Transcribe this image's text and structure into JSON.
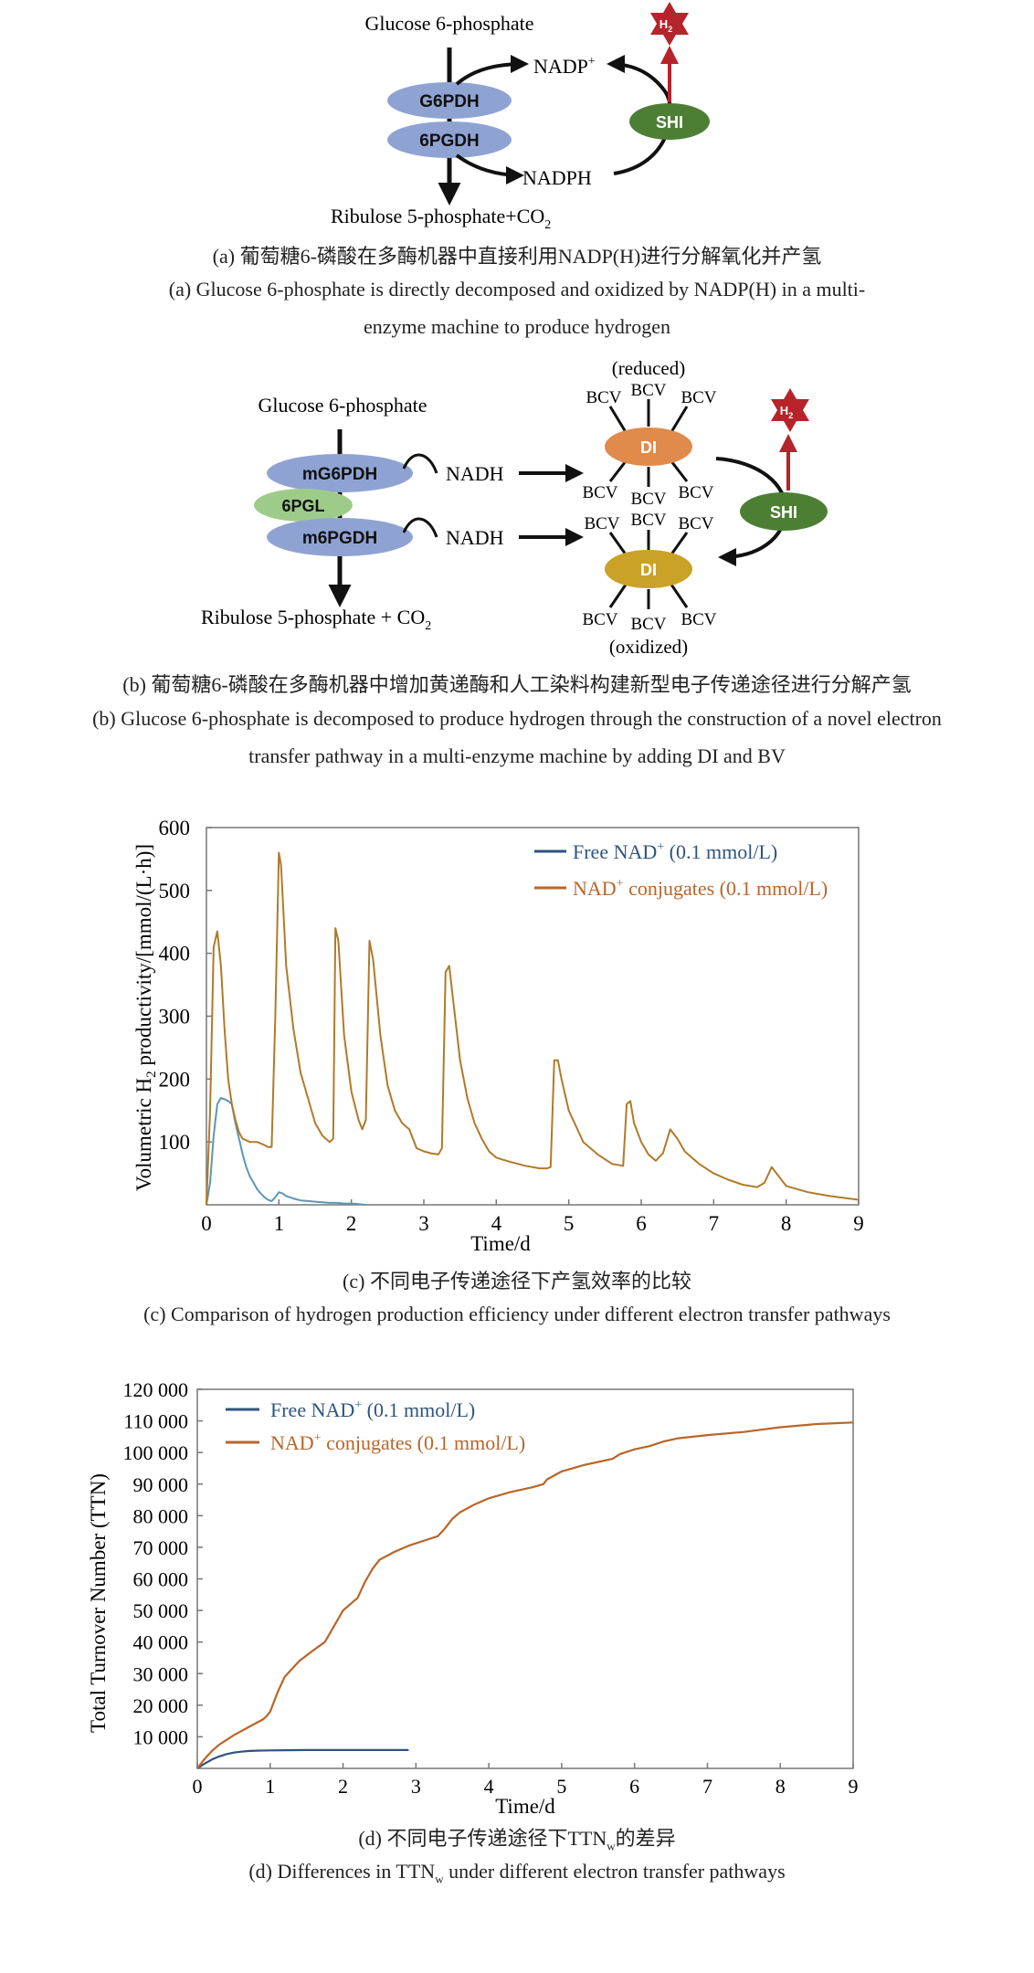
{
  "panel_a": {
    "substrate": "Glucose 6-phosphate",
    "enzyme1": "G6PDH",
    "enzyme2": "6PGDH",
    "cofactor_ox": "NADP",
    "cofactor_ox_sup": "+",
    "cofactor_red": "NADPH",
    "hydrogenase": "SHI",
    "h2": "H",
    "h2_sub": "2",
    "product": "Ribulose 5-phosphate+CO",
    "product_sub": "2",
    "caption_cn": "(a) 葡萄糖6-磷酸在多酶机器中直接利用NADP(H)进行分解氧化并产氢",
    "caption_en_1": "(a) Glucose 6-phosphate is directly decomposed and oxidized by NADP(H) in a multi-",
    "caption_en_2": "enzyme machine to produce hydrogen"
  },
  "panel_b": {
    "substrate": "Glucose 6-phosphate",
    "enzyme1": "mG6PDH",
    "enzyme_mid": "6PGL",
    "enzyme2": "m6PGDH",
    "cofactor1": "NADH",
    "cofactor2": "NADH",
    "reduced_label": "(reduced)",
    "oxidized_label": "(oxidized)",
    "di": "DI",
    "bcv": "BCV",
    "hydrogenase": "SHI",
    "h2": "H",
    "h2_sub": "2",
    "product": "Ribulose 5-phosphate + CO",
    "product_sub": "2",
    "caption_cn": "(b) 葡萄糖6-磷酸在多酶机器中增加黄递酶和人工染料构建新型电子传递途径进行分解产氢",
    "caption_en_1": "(b) Glucose 6-phosphate is decomposed to produce hydrogen through the construction of a novel electron",
    "caption_en_2": "transfer pathway in a multi-enzyme machine by adding DI and BV"
  },
  "panel_c": {
    "caption_cn": "(c) 不同电子传递途径下产氢效率的比较",
    "caption_en": "(c) Comparison of hydrogen production efficiency under different electron transfer pathways"
  },
  "panel_d": {
    "caption_cn_pre": "(d) 不同电子传递途径下TTN",
    "caption_cn_sub": "w",
    "caption_cn_post": "的差异",
    "caption_en_pre": "(d) Differences in TTN",
    "caption_en_sub": "w",
    "caption_en_post": " under different electron transfer pathways"
  },
  "colors": {
    "free": "#2e5480",
    "conj": "#b8652a",
    "free_c": "#5b97b0",
    "conj_c": "#b07a2a",
    "enzyme": "#8fa3d3",
    "pgl": "#9dcc8a",
    "shi": "#4c7f34",
    "h2": "#b5242a",
    "di_red": "#e08a4b",
    "di_ox": "#c9a227"
  },
  "chart_data": [
    {
      "type": "line",
      "title": "",
      "xlabel": "Time/d",
      "ylabel_pre": "Volumetric H",
      "ylabel_sub": "2",
      "ylabel_post": " productivity/[mmol/(L·h)]",
      "xlim": [
        0,
        9
      ],
      "ylim": [
        0,
        600
      ],
      "xticks": [
        "0",
        "1",
        "2",
        "3",
        "4",
        "5",
        "6",
        "7",
        "8",
        "9"
      ],
      "yticks": [
        "100",
        "200",
        "300",
        "400",
        "500",
        "600"
      ],
      "legend_position": "top-right",
      "series": [
        {
          "name_pre": "Free NAD",
          "name_sup": "+",
          "name_post": " (0.1 mmol/L)",
          "x": [
            0,
            0.05,
            0.1,
            0.15,
            0.2,
            0.25,
            0.3,
            0.35,
            0.4,
            0.45,
            0.5,
            0.55,
            0.6,
            0.65,
            0.7,
            0.75,
            0.8,
            0.85,
            0.9,
            0.95,
            1.0,
            1.05,
            1.1,
            1.2,
            1.3,
            1.4,
            1.5,
            1.6,
            1.7,
            1.8,
            1.9,
            2.0,
            2.1,
            2.2
          ],
          "y": [
            0,
            35,
            110,
            160,
            170,
            168,
            165,
            160,
            130,
            105,
            80,
            60,
            45,
            35,
            25,
            18,
            12,
            8,
            6,
            12,
            20,
            18,
            14,
            10,
            7,
            6,
            5,
            4,
            3,
            3,
            2,
            2,
            1,
            0
          ]
        },
        {
          "name_pre": "NAD",
          "name_sup": "+",
          "name_post": " conjugates (0.1 mmol/L)",
          "x": [
            0,
            0.05,
            0.1,
            0.15,
            0.2,
            0.25,
            0.3,
            0.35,
            0.4,
            0.45,
            0.5,
            0.6,
            0.7,
            0.8,
            0.85,
            0.9,
            0.95,
            1.0,
            1.03,
            1.1,
            1.2,
            1.3,
            1.4,
            1.5,
            1.6,
            1.7,
            1.75,
            1.78,
            1.82,
            1.9,
            2.0,
            2.1,
            2.15,
            2.2,
            2.25,
            2.3,
            2.4,
            2.5,
            2.6,
            2.7,
            2.8,
            2.9,
            3.0,
            3.1,
            3.2,
            3.25,
            3.3,
            3.35,
            3.4,
            3.5,
            3.6,
            3.7,
            3.8,
            3.9,
            4.0,
            4.2,
            4.4,
            4.6,
            4.7,
            4.75,
            4.8,
            4.85,
            4.9,
            5.0,
            5.2,
            5.4,
            5.6,
            5.75,
            5.8,
            5.85,
            5.9,
            6.0,
            6.1,
            6.2,
            6.3,
            6.4,
            6.5,
            6.6,
            6.8,
            7.0,
            7.2,
            7.4,
            7.6,
            7.7,
            7.8,
            7.9,
            8.0,
            8.3,
            8.6,
            9.0
          ],
          "y": [
            0,
            150,
            410,
            435,
            380,
            280,
            200,
            160,
            135,
            115,
            105,
            100,
            100,
            95,
            92,
            92,
            300,
            560,
            540,
            380,
            280,
            210,
            170,
            130,
            110,
            100,
            105,
            440,
            420,
            270,
            180,
            135,
            120,
            135,
            420,
            390,
            270,
            190,
            150,
            130,
            120,
            90,
            85,
            82,
            80,
            90,
            370,
            380,
            330,
            230,
            170,
            130,
            105,
            85,
            75,
            68,
            62,
            58,
            58,
            60,
            230,
            230,
            200,
            150,
            100,
            80,
            65,
            62,
            160,
            165,
            130,
            100,
            80,
            70,
            82,
            120,
            105,
            85,
            65,
            50,
            40,
            32,
            28,
            35,
            60,
            45,
            30,
            20,
            14,
            8
          ]
        }
      ]
    },
    {
      "type": "line",
      "title": "",
      "xlabel": "Time/d",
      "ylabel": "Total Turnover Number (TTN)",
      "xlim": [
        0,
        9
      ],
      "ylim": [
        0,
        120000
      ],
      "xticks": [
        "0",
        "1",
        "2",
        "3",
        "4",
        "5",
        "6",
        "7",
        "8",
        "9"
      ],
      "yticks": [
        "10 000",
        "20 000",
        "30 000",
        "40 000",
        "50 000",
        "60 000",
        "70 000",
        "80 000",
        "90 000",
        "100 000",
        "110 000",
        "120 000"
      ],
      "legend_position": "top-left",
      "series": [
        {
          "name_pre": "Free NAD",
          "name_sup": "+",
          "name_post": " (0.1 mmol/L)",
          "x": [
            0,
            0.1,
            0.2,
            0.3,
            0.4,
            0.5,
            0.6,
            0.7,
            0.8,
            1.0,
            1.2,
            1.5,
            2.0,
            2.5,
            2.9
          ],
          "y": [
            0,
            1500,
            2800,
            3800,
            4500,
            5000,
            5300,
            5500,
            5600,
            5700,
            5750,
            5800,
            5800,
            5800,
            5800
          ]
        },
        {
          "name_pre": "NAD",
          "name_sup": "+",
          "name_post": " conjugates (0.1 mmol/L)",
          "x": [
            0,
            0.1,
            0.2,
            0.3,
            0.5,
            0.7,
            0.9,
            0.95,
            1.0,
            1.1,
            1.2,
            1.4,
            1.6,
            1.75,
            1.8,
            1.9,
            2.0,
            2.1,
            2.2,
            2.25,
            2.3,
            2.4,
            2.5,
            2.7,
            2.9,
            3.1,
            3.3,
            3.4,
            3.5,
            3.6,
            3.8,
            4.0,
            4.3,
            4.6,
            4.75,
            4.8,
            5.0,
            5.3,
            5.7,
            5.8,
            6.0,
            6.2,
            6.4,
            6.6,
            7.0,
            7.5,
            8.0,
            8.5,
            9.0
          ],
          "y": [
            0,
            3000,
            5500,
            7500,
            10500,
            13000,
            15500,
            16500,
            18000,
            24000,
            29000,
            34000,
            37500,
            40000,
            42000,
            46000,
            50000,
            52000,
            54000,
            56500,
            59000,
            63000,
            66000,
            68500,
            70500,
            72000,
            73500,
            76000,
            79000,
            81000,
            83500,
            85500,
            87500,
            89000,
            90000,
            91500,
            94000,
            96000,
            98000,
            99500,
            101000,
            102000,
            103500,
            104500,
            105500,
            106500,
            108000,
            109000,
            109500
          ]
        }
      ]
    }
  ]
}
